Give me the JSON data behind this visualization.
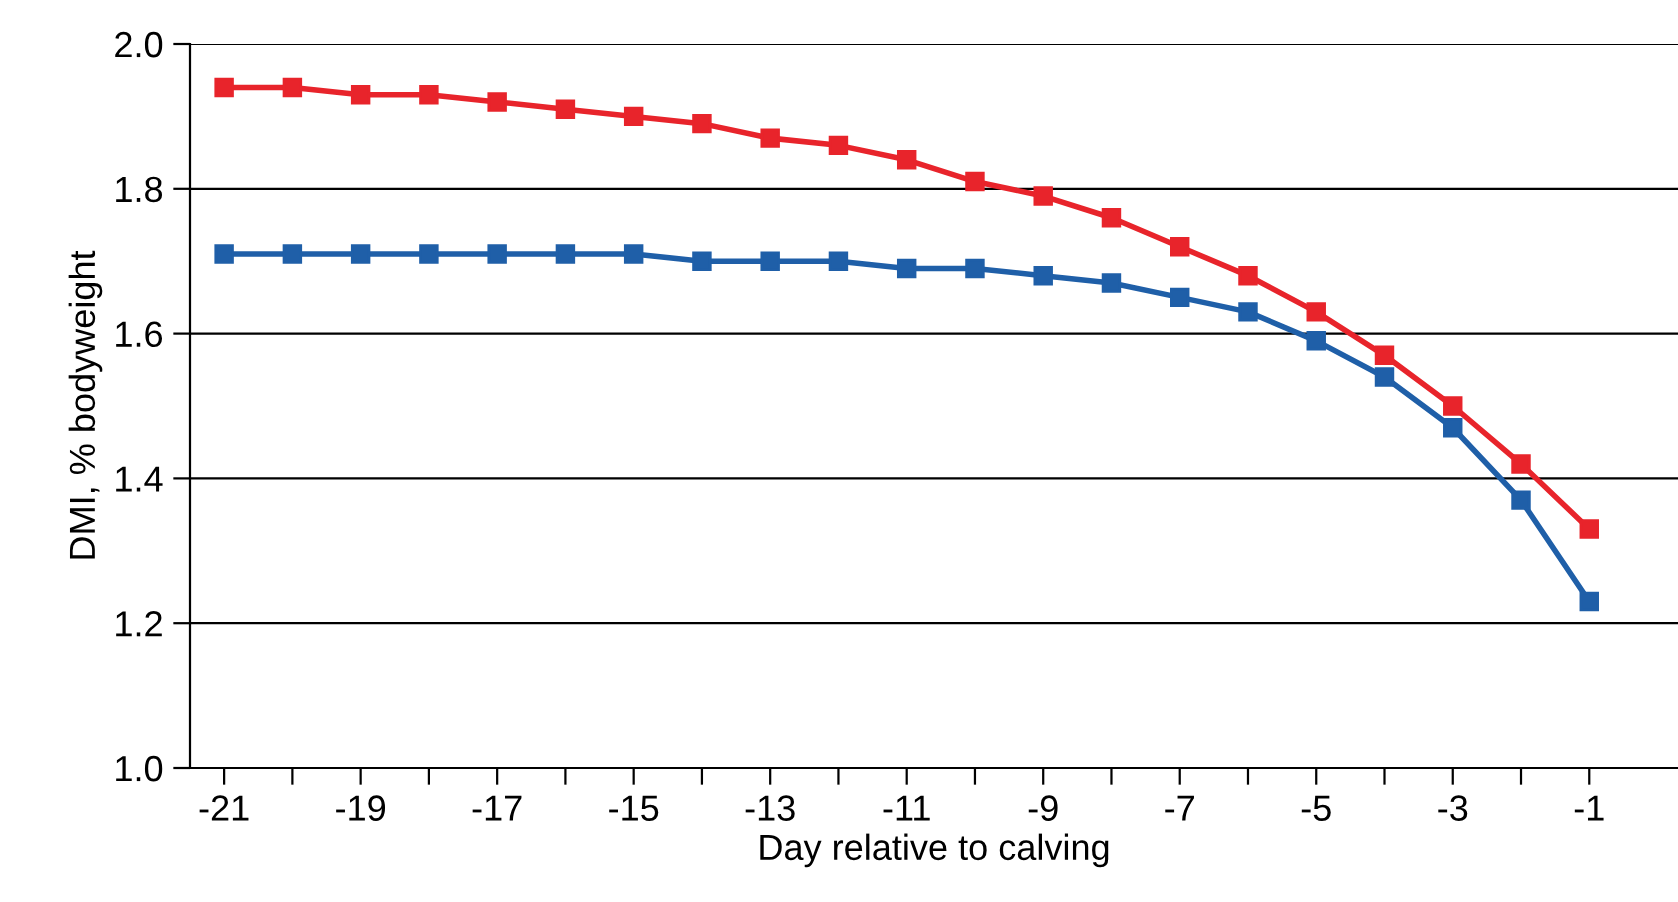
{
  "chart_data": {
    "type": "line",
    "xlabel": "Day relative to calving",
    "ylabel": "DMI, % bodyweight",
    "x": [
      -21,
      -20,
      -19,
      -18,
      -17,
      -16,
      -15,
      -14,
      -13,
      -12,
      -11,
      -10,
      -9,
      -8,
      -7,
      -6,
      -5,
      -4,
      -3,
      -2,
      -1
    ],
    "series": [
      {
        "color": "#e8242b",
        "values": [
          1.94,
          1.94,
          1.93,
          1.93,
          1.92,
          1.91,
          1.9,
          1.89,
          1.87,
          1.86,
          1.84,
          1.81,
          1.79,
          1.76,
          1.72,
          1.68,
          1.63,
          1.57,
          1.5,
          1.42,
          1.33
        ]
      },
      {
        "color": "#1f5fa8",
        "values": [
          1.71,
          1.71,
          1.71,
          1.71,
          1.71,
          1.71,
          1.71,
          1.7,
          1.7,
          1.7,
          1.69,
          1.69,
          1.68,
          1.67,
          1.65,
          1.63,
          1.59,
          1.54,
          1.47,
          1.37,
          1.23
        ]
      }
    ],
    "xlim": [
      -21.5,
      0.3
    ],
    "xticks": [
      -21,
      {
        "value": -20,
        "label": null
      },
      -19,
      {
        "value": -18,
        "label": null
      },
      -17,
      {
        "value": -16,
        "label": null
      },
      -15,
      {
        "value": -14,
        "label": null
      },
      -13,
      {
        "value": -12,
        "label": null
      },
      -11,
      {
        "value": -10,
        "label": null
      },
      -9,
      {
        "value": -8,
        "label": null
      },
      -7,
      {
        "value": -6,
        "label": null
      },
      -5,
      {
        "value": -4,
        "label": null
      },
      -3,
      {
        "value": -2,
        "label": null
      },
      -1
    ],
    "ylim": [
      1.0,
      2.0
    ],
    "yticks": [
      {
        "value": 1.0,
        "label": "1.0"
      },
      1.2,
      1.4,
      1.6,
      1.8,
      {
        "value": 2.0,
        "label": "2.0"
      }
    ],
    "grid": "y",
    "legend": false,
    "marker": "square",
    "line_style": "solid"
  }
}
